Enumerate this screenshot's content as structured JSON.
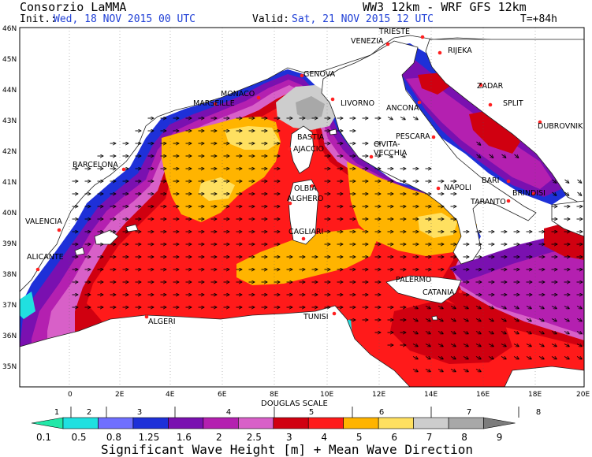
{
  "header": {
    "org": "Consorzio LaMMA",
    "model": "WW3 12km - WRF GFS 12km",
    "init_label": "Init.:",
    "init_value": "Wed, 18 NOV 2015  00 UTC",
    "valid_label": "Valid:",
    "valid_value": "Sat, 21 NOV 2015  12 UTC",
    "forecast_step": "T=+84h"
  },
  "axes": {
    "lat_labels": [
      "46N",
      "45N",
      "44N",
      "43N",
      "42N",
      "41N",
      "40N",
      "39N",
      "38N",
      "37N",
      "36N",
      "35N"
    ],
    "lon_labels": [
      "0",
      "2E",
      "4E",
      "6E",
      "8E",
      "10E",
      "12E",
      "14E",
      "16E",
      "18E",
      "20E"
    ]
  },
  "cities": [
    {
      "name": "TRIESTE"
    },
    {
      "name": "VENEZIA"
    },
    {
      "name": "RIJEKA"
    },
    {
      "name": "GENOVA"
    },
    {
      "name": "MONACO"
    },
    {
      "name": "MARSEILLE"
    },
    {
      "name": "LIVORNO"
    },
    {
      "name": "ANCONA"
    },
    {
      "name": "ZADAR"
    },
    {
      "name": "SPLIT"
    },
    {
      "name": "DUBROVNIK"
    },
    {
      "name": "PESCARA"
    },
    {
      "name": "BASTIA"
    },
    {
      "name": "AJACCIO"
    },
    {
      "name": "CIVITA-"
    },
    {
      "name": "VECCHIA"
    },
    {
      "name": "BARCELONA"
    },
    {
      "name": "OLBIA"
    },
    {
      "name": "ALGHERO"
    },
    {
      "name": "NAPOLI"
    },
    {
      "name": "BARI"
    },
    {
      "name": "BRINDISI"
    },
    {
      "name": "TARANTO"
    },
    {
      "name": "VALENCIA"
    },
    {
      "name": "CAGLIARI"
    },
    {
      "name": "ALICANTE"
    },
    {
      "name": "PALERMO"
    },
    {
      "name": "CATANIA"
    },
    {
      "name": "TUNISI"
    },
    {
      "name": "ALGERI"
    }
  ],
  "colorbar": {
    "douglas_label": "DOUGLAS SCALE",
    "douglas_values": [
      "1",
      "2",
      "3",
      "4",
      "5",
      "6",
      "7",
      "8"
    ],
    "height_values": [
      "0.1",
      "0.5",
      "0.8",
      "1.25",
      "1.6",
      "2",
      "2.5",
      "3",
      "4",
      "5",
      "6",
      "7",
      "8",
      "9"
    ],
    "colors": [
      "#22e8a8",
      "#20e0e0",
      "#6f6fff",
      "#1e30d8",
      "#7a10b0",
      "#b420b0",
      "#d860c8",
      "#d00010",
      "#ff1a1a",
      "#ffb400",
      "#ffe060",
      "#cdcdcd",
      "#a8a8a8",
      "#7c7c7c"
    ],
    "caption": "Significant Wave Height [m] + Mean Wave Direction"
  },
  "palette": {
    "land": "#ffffff",
    "coast": "#222222",
    "arrow": "#000000",
    "city_dot": "#ff2020",
    "header_blue": "#1f3fd6"
  }
}
